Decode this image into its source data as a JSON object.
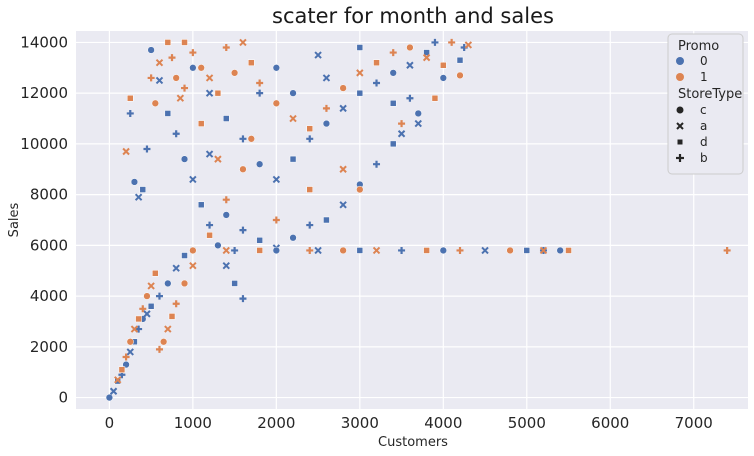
{
  "chart_data": {
    "type": "scatter",
    "title": "scater for month and sales",
    "xlabel": "Customers",
    "ylabel": "Sales",
    "xlim": [
      -400,
      7650
    ],
    "ylim": [
      -450,
      14450
    ],
    "xticks": [
      0,
      1000,
      2000,
      3000,
      4000,
      5000,
      6000,
      7000
    ],
    "yticks": [
      0,
      2000,
      4000,
      6000,
      8000,
      10000,
      12000,
      14000
    ],
    "grid": true,
    "legend_position": "top-right",
    "hue": {
      "title": "Promo",
      "levels": [
        {
          "label": "0",
          "color": "#4c72b0"
        },
        {
          "label": "1",
          "color": "#dd8452"
        }
      ]
    },
    "style": {
      "title": "StoreType",
      "levels": [
        {
          "label": "c",
          "marker": "circle"
        },
        {
          "label": "a",
          "marker": "x"
        },
        {
          "label": "d",
          "marker": "square"
        },
        {
          "label": "b",
          "marker": "plus"
        }
      ]
    },
    "series": [
      {
        "name": "0",
        "points": [
          [
            0,
            0
          ],
          [
            50,
            250
          ],
          [
            100,
            650
          ],
          [
            150,
            900
          ],
          [
            200,
            1300
          ],
          [
            250,
            1800
          ],
          [
            300,
            2200
          ],
          [
            350,
            2700
          ],
          [
            400,
            3100
          ],
          [
            450,
            3300
          ],
          [
            500,
            3600
          ],
          [
            600,
            4000
          ],
          [
            700,
            4500
          ],
          [
            800,
            5100
          ],
          [
            900,
            5600
          ],
          [
            250,
            11200
          ],
          [
            300,
            8500
          ],
          [
            350,
            7900
          ],
          [
            400,
            8200
          ],
          [
            450,
            9800
          ],
          [
            500,
            13700
          ],
          [
            600,
            12500
          ],
          [
            700,
            11200
          ],
          [
            800,
            10400
          ],
          [
            900,
            9400
          ],
          [
            1000,
            8600
          ],
          [
            1100,
            7600
          ],
          [
            1200,
            6800
          ],
          [
            1300,
            6000
          ],
          [
            1400,
            5200
          ],
          [
            1500,
            4500
          ],
          [
            1600,
            3900
          ],
          [
            1000,
            13000
          ],
          [
            1200,
            12000
          ],
          [
            1400,
            11000
          ],
          [
            1600,
            10200
          ],
          [
            1800,
            9200
          ],
          [
            2000,
            8600
          ],
          [
            2200,
            9400
          ],
          [
            2400,
            10200
          ],
          [
            2600,
            10800
          ],
          [
            2800,
            11400
          ],
          [
            3000,
            12000
          ],
          [
            3200,
            12400
          ],
          [
            3400,
            12800
          ],
          [
            3600,
            13100
          ],
          [
            3800,
            13600
          ],
          [
            3900,
            14000
          ],
          [
            2000,
            13000
          ],
          [
            2500,
            13500
          ],
          [
            3000,
            13800
          ],
          [
            1800,
            12000
          ],
          [
            2200,
            12000
          ],
          [
            2600,
            12600
          ],
          [
            3400,
            11600
          ],
          [
            3600,
            11800
          ],
          [
            3700,
            11200
          ],
          [
            3700,
            10800
          ],
          [
            3400,
            10000
          ],
          [
            3200,
            9200
          ],
          [
            3000,
            8400
          ],
          [
            2800,
            7600
          ],
          [
            2600,
            7000
          ],
          [
            2400,
            6800
          ],
          [
            2200,
            6300
          ],
          [
            2000,
            5900
          ],
          [
            1800,
            6200
          ],
          [
            1600,
            6600
          ],
          [
            1400,
            7200
          ],
          [
            1200,
            9600
          ],
          [
            4200,
            13300
          ],
          [
            4250,
            13800
          ],
          [
            4000,
            12600
          ],
          [
            3500,
            10400
          ],
          [
            1000,
            5800
          ],
          [
            1500,
            5800
          ],
          [
            2000,
            5800
          ],
          [
            2500,
            5800
          ],
          [
            3000,
            5800
          ],
          [
            3500,
            5800
          ],
          [
            4000,
            5800
          ],
          [
            4500,
            5800
          ],
          [
            5000,
            5800
          ],
          [
            5200,
            5800
          ],
          [
            5400,
            5800
          ]
        ]
      },
      {
        "name": "1",
        "points": [
          [
            100,
            700
          ],
          [
            150,
            1100
          ],
          [
            200,
            1600
          ],
          [
            250,
            2200
          ],
          [
            300,
            2700
          ],
          [
            350,
            3100
          ],
          [
            400,
            3500
          ],
          [
            450,
            4000
          ],
          [
            500,
            4400
          ],
          [
            550,
            4900
          ],
          [
            600,
            1900
          ],
          [
            650,
            2200
          ],
          [
            700,
            2700
          ],
          [
            750,
            3200
          ],
          [
            800,
            3700
          ],
          [
            900,
            4500
          ],
          [
            1000,
            5200
          ],
          [
            1200,
            6400
          ],
          [
            1400,
            7800
          ],
          [
            1600,
            9000
          ],
          [
            200,
            9700
          ],
          [
            250,
            11800
          ],
          [
            500,
            12600
          ],
          [
            550,
            11600
          ],
          [
            600,
            13200
          ],
          [
            700,
            14000
          ],
          [
            750,
            13400
          ],
          [
            800,
            12600
          ],
          [
            850,
            11800
          ],
          [
            900,
            14000
          ],
          [
            1000,
            13600
          ],
          [
            1100,
            13000
          ],
          [
            1200,
            12600
          ],
          [
            1300,
            12000
          ],
          [
            1400,
            13800
          ],
          [
            1500,
            12800
          ],
          [
            1600,
            14000
          ],
          [
            1700,
            13200
          ],
          [
            1800,
            12400
          ],
          [
            2000,
            11600
          ],
          [
            2200,
            11000
          ],
          [
            2400,
            10600
          ],
          [
            2600,
            11400
          ],
          [
            2800,
            12200
          ],
          [
            3000,
            12800
          ],
          [
            3200,
            13200
          ],
          [
            3400,
            13600
          ],
          [
            3600,
            13800
          ],
          [
            3800,
            13400
          ],
          [
            4000,
            13100
          ],
          [
            4100,
            14000
          ],
          [
            4200,
            12700
          ],
          [
            4300,
            13900
          ],
          [
            3900,
            11800
          ],
          [
            3500,
            10800
          ],
          [
            3000,
            8200
          ],
          [
            2800,
            9000
          ],
          [
            2400,
            8200
          ],
          [
            2000,
            7000
          ],
          [
            1700,
            10200
          ],
          [
            1300,
            9400
          ],
          [
            1100,
            10800
          ],
          [
            900,
            12200
          ],
          [
            1000,
            5800
          ],
          [
            1400,
            5800
          ],
          [
            1800,
            5800
          ],
          [
            2400,
            5800
          ],
          [
            2800,
            5800
          ],
          [
            3200,
            5800
          ],
          [
            3800,
            5800
          ],
          [
            4200,
            5800
          ],
          [
            4800,
            5800
          ],
          [
            5200,
            5800
          ],
          [
            5500,
            5800
          ],
          [
            7400,
            5800
          ]
        ]
      }
    ]
  }
}
